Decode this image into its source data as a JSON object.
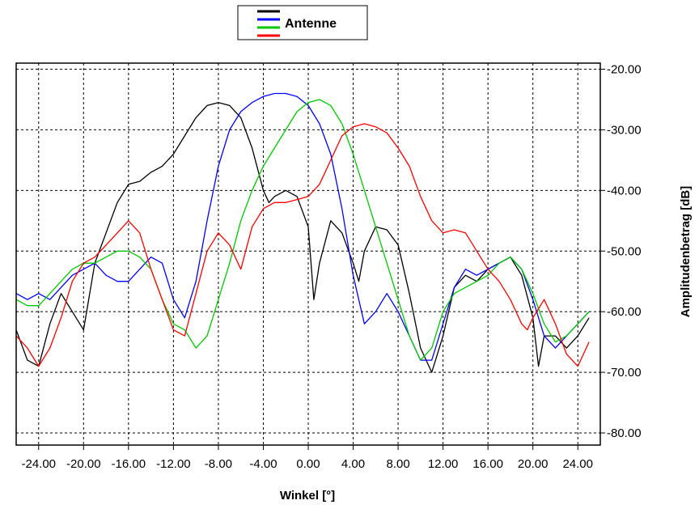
{
  "chart_data": {
    "type": "line",
    "title": "",
    "xlabel": "Winkel [°]",
    "ylabel": "Amplitudenbetrag [dB]",
    "xlim": [
      -26,
      26
    ],
    "ylim": [
      -82,
      -19
    ],
    "x_ticks": [
      -24,
      -20,
      -16,
      -12,
      -8,
      -4,
      0,
      4,
      8,
      12,
      16,
      20,
      24
    ],
    "x_tick_labels": [
      "-24.00",
      "-20.00",
      "-16.00",
      "-12.00",
      "-8.00",
      "-4.00",
      "0.00",
      "4.00",
      "8.00",
      "12.00",
      "16.00",
      "20.00",
      "24.00"
    ],
    "y_ticks": [
      -20,
      -30,
      -40,
      -50,
      -60,
      -70,
      -80
    ],
    "y_tick_labels": [
      "-20.00",
      "-30.00",
      "-40.00",
      "-50.00",
      "-60.00",
      "-70.00",
      "-80.00"
    ],
    "grid": true,
    "y_axis_side": "right",
    "legend": {
      "placement": "top-center",
      "label": "Antenne",
      "colors": [
        "#000000",
        "#0000ff",
        "#00c800",
        "#ff0000"
      ]
    },
    "series": [
      {
        "color": "#000000",
        "x": [
          -26,
          -25,
          -24,
          -23,
          -22,
          -21,
          -20,
          -19,
          -18,
          -17,
          -16,
          -15,
          -14,
          -13,
          -12,
          -11,
          -10,
          -9,
          -8,
          -7,
          -6,
          -5,
          -4,
          -3.5,
          -3,
          -2,
          -1,
          0,
          0.5,
          1,
          2,
          3,
          4,
          4.5,
          5,
          6,
          7,
          8,
          9,
          10,
          11,
          12,
          13,
          14,
          15,
          16,
          17,
          18,
          19,
          20,
          20.5,
          21,
          22,
          23,
          24,
          25
        ],
        "y": [
          -63,
          -68,
          -69,
          -62,
          -57,
          -60,
          -63,
          -52,
          -47,
          -42,
          -39,
          -38.5,
          -37,
          -36,
          -34,
          -31,
          -28,
          -26,
          -25.5,
          -26,
          -28,
          -33,
          -40,
          -42,
          -41,
          -40,
          -41,
          -46,
          -58,
          -52,
          -45,
          -47,
          -52,
          -55,
          -50,
          -46,
          -46.5,
          -49,
          -57,
          -66,
          -70,
          -64,
          -56,
          -54,
          -55,
          -53,
          -52,
          -51,
          -54,
          -61,
          -69,
          -64,
          -64,
          -66,
          -64,
          -61
        ]
      },
      {
        "color": "#0000ff",
        "x": [
          -26,
          -25,
          -24,
          -23,
          -22,
          -21,
          -20,
          -19,
          -18,
          -17,
          -16,
          -15,
          -14,
          -13,
          -12,
          -11,
          -10,
          -9,
          -8,
          -7,
          -6,
          -5,
          -4,
          -3,
          -2,
          -1,
          0,
          1,
          2,
          3,
          4,
          5,
          6,
          7,
          8,
          9,
          10,
          11,
          12,
          13,
          14,
          15,
          16,
          17,
          18,
          19,
          20,
          21,
          22,
          23,
          24,
          25
        ],
        "y": [
          -57,
          -58,
          -57,
          -58,
          -56,
          -54,
          -53,
          -52,
          -54,
          -55,
          -55,
          -53,
          -51,
          -52,
          -58,
          -61,
          -55,
          -45,
          -36,
          -30,
          -27,
          -25.5,
          -24.5,
          -24,
          -24,
          -24.5,
          -26,
          -29,
          -34,
          -43,
          -54,
          -62,
          -60,
          -57,
          -60,
          -64,
          -68,
          -68,
          -62,
          -56,
          -53,
          -54,
          -53,
          -52,
          -51,
          -53,
          -58,
          -64,
          -66,
          -64,
          -62,
          -60
        ]
      },
      {
        "color": "#00c800",
        "x": [
          -26,
          -25,
          -24,
          -23,
          -22,
          -21,
          -20,
          -19,
          -18,
          -17,
          -16,
          -15,
          -14,
          -13,
          -12,
          -11,
          -10,
          -9,
          -8,
          -7,
          -6,
          -5,
          -4,
          -3,
          -2,
          -1,
          0,
          1,
          2,
          3,
          4,
          5,
          6,
          7,
          8,
          9,
          10,
          11,
          12,
          13,
          14,
          15,
          16,
          17,
          18,
          19,
          20,
          21,
          22,
          23,
          24,
          25
        ],
        "y": [
          -58,
          -59,
          -59,
          -57,
          -55,
          -53,
          -52,
          -52,
          -51,
          -50,
          -50,
          -51,
          -53,
          -58,
          -62,
          -63,
          -66,
          -64,
          -58,
          -52,
          -45,
          -40,
          -36,
          -33,
          -30,
          -27,
          -25.5,
          -25,
          -26,
          -29,
          -34,
          -40,
          -46,
          -52,
          -58,
          -64,
          -68,
          -66,
          -60,
          -57,
          -56,
          -55,
          -54,
          -52,
          -51,
          -53,
          -57,
          -62,
          -65,
          -64,
          -62,
          -60
        ]
      },
      {
        "color": "#ff0000",
        "x": [
          -26,
          -25,
          -24,
          -23,
          -22,
          -21,
          -20,
          -19,
          -18,
          -17,
          -16,
          -15,
          -14,
          -13,
          -12,
          -11,
          -10,
          -9,
          -8,
          -7,
          -6,
          -5,
          -4,
          -3,
          -2,
          -1,
          0,
          1,
          2,
          3,
          4,
          5,
          6,
          7,
          8,
          9,
          10,
          11,
          12,
          13,
          14,
          15,
          16,
          17,
          18,
          19,
          19.5,
          20,
          21,
          22,
          23,
          24,
          25
        ],
        "y": [
          -64,
          -66,
          -69,
          -66,
          -61,
          -55,
          -52,
          -51,
          -49,
          -47,
          -45,
          -47,
          -53,
          -58,
          -63,
          -64,
          -57,
          -50,
          -47,
          -49,
          -53,
          -46,
          -43,
          -42,
          -42,
          -41.5,
          -41,
          -39,
          -35,
          -31,
          -29.5,
          -29,
          -29.5,
          -30.5,
          -33,
          -36,
          -41,
          -45,
          -47,
          -46.5,
          -47,
          -50,
          -53,
          -55,
          -58,
          -62,
          -63,
          -61,
          -58,
          -62,
          -67,
          -69,
          -65
        ]
      }
    ]
  }
}
